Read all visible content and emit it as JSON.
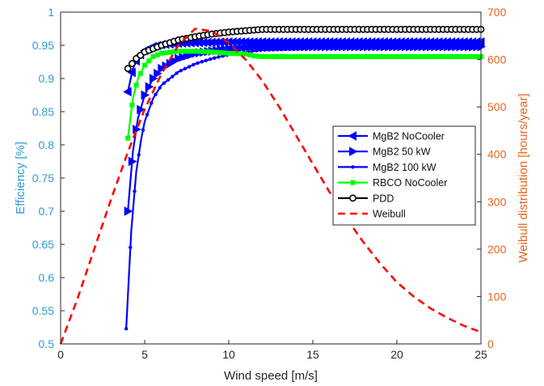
{
  "chart_data": {
    "type": "line",
    "xlabel": "Wind speed [m/s]",
    "ylabel_left": "Efficiency [%]",
    "ylabel_right": "Weibull distribution [hours/year]",
    "xlim": [
      0,
      25
    ],
    "ylim_left": [
      0.5,
      1
    ],
    "ylim_right": [
      0,
      700
    ],
    "x_ticks": [
      "0",
      "5",
      "10",
      "15",
      "20",
      "25"
    ],
    "y_left_ticks": [
      "0.5",
      "0.55",
      "0.6",
      "0.65",
      "0.7",
      "0.75",
      "0.8",
      "0.85",
      "0.9",
      "0.95",
      "1"
    ],
    "y_right_ticks": [
      "0",
      "100",
      "200",
      "300",
      "400",
      "500",
      "600",
      "700"
    ],
    "grid": false,
    "legend_position": "right",
    "colors": {
      "left_axis": "#2e9bd6",
      "right_axis": "#e8641e",
      "blue": "#0000ff",
      "green": "#00ff00",
      "black": "#000000",
      "red": "#ff0000"
    },
    "series": [
      {
        "name": "MgB2 NoCooler",
        "axis": "left",
        "color": "#0000ff",
        "marker": "triangle-left",
        "x": [
          4,
          4.3,
          4.6,
          5,
          5.5,
          6,
          7,
          8,
          10,
          12,
          15,
          20,
          25
        ],
        "y": [
          0.88,
          0.915,
          0.932,
          0.942,
          0.948,
          0.951,
          0.953,
          0.954,
          0.955,
          0.955,
          0.955,
          0.955,
          0.955
        ]
      },
      {
        "name": "MgB2 50 kW",
        "axis": "left",
        "color": "#0000ff",
        "marker": "triangle-right",
        "x": [
          4,
          4.3,
          4.6,
          5,
          5.5,
          6,
          7,
          8,
          10,
          12,
          15,
          20,
          25
        ],
        "y": [
          0.7,
          0.79,
          0.84,
          0.875,
          0.9,
          0.915,
          0.93,
          0.938,
          0.945,
          0.948,
          0.948,
          0.948,
          0.948
        ]
      },
      {
        "name": "MgB2 100 kW",
        "axis": "left",
        "color": "#0000ff",
        "marker": "dot",
        "x": [
          3.9,
          4.2,
          4.5,
          4.8,
          5,
          5.5,
          6,
          7,
          8,
          9,
          10,
          11,
          12,
          15,
          20,
          25
        ],
        "y": [
          0.523,
          0.67,
          0.76,
          0.81,
          0.835,
          0.87,
          0.89,
          0.91,
          0.922,
          0.93,
          0.936,
          0.94,
          0.943,
          0.945,
          0.945,
          0.945
        ]
      },
      {
        "name": "RBCO NoCooler",
        "axis": "left",
        "color": "#00ff00",
        "marker": "square",
        "x": [
          4,
          4.3,
          4.6,
          5,
          5.5,
          6,
          7,
          8,
          9,
          10,
          11,
          11.5,
          12,
          15,
          20,
          25
        ],
        "y": [
          0.81,
          0.87,
          0.9,
          0.92,
          0.933,
          0.938,
          0.941,
          0.941,
          0.94,
          0.938,
          0.937,
          0.934,
          0.933,
          0.933,
          0.933,
          0.933
        ]
      },
      {
        "name": "PDD",
        "axis": "left",
        "color": "#000000",
        "marker": "circle",
        "x": [
          4,
          4.5,
          5,
          6,
          7,
          8,
          9,
          10,
          11,
          12,
          15,
          20,
          25
        ],
        "y": [
          0.915,
          0.93,
          0.94,
          0.95,
          0.958,
          0.963,
          0.967,
          0.97,
          0.972,
          0.974,
          0.974,
          0.974,
          0.974
        ]
      },
      {
        "name": "Weibull",
        "axis": "right",
        "color": "#ff0000",
        "style": "dashed",
        "x": [
          0,
          1,
          2,
          3,
          4,
          5,
          6,
          7,
          8,
          9,
          10,
          11,
          12,
          13,
          14,
          15,
          16,
          17,
          18,
          19,
          20,
          21,
          22,
          23,
          24,
          25
        ],
        "y": [
          0,
          95,
          200,
          305,
          405,
          495,
          570,
          630,
          665,
          660,
          635,
          600,
          555,
          500,
          440,
          380,
          320,
          265,
          215,
          170,
          130,
          100,
          75,
          55,
          38,
          25
        ]
      }
    ]
  }
}
